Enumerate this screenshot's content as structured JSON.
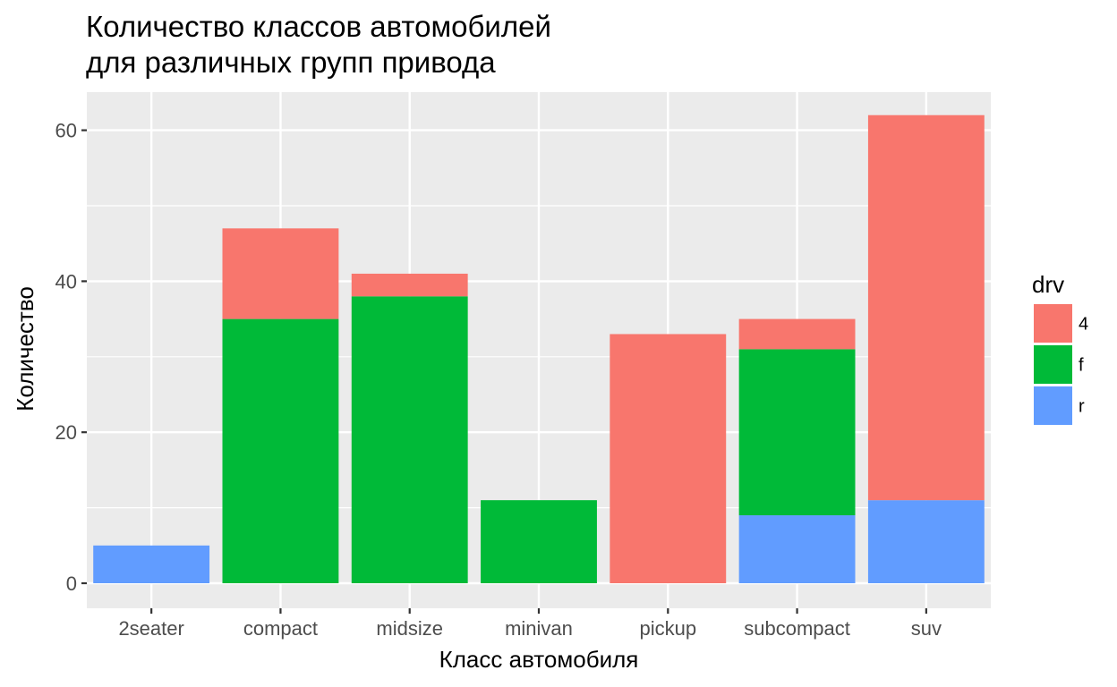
{
  "chart_data": {
    "type": "bar",
    "stacked": true,
    "title_lines": [
      "Количество классов автомобилей",
      "для различных групп привода"
    ],
    "xlabel": "Класс автомобиля",
    "ylabel": "Количество",
    "categories": [
      "2seater",
      "compact",
      "midsize",
      "minivan",
      "pickup",
      "subcompact",
      "suv"
    ],
    "ylim": [
      0,
      65
    ],
    "yticks": [
      0,
      20,
      40,
      60
    ],
    "grid": true,
    "legend": {
      "title": "drv",
      "placement": "right",
      "items": [
        {
          "label": "4",
          "color": "#F8766D"
        },
        {
          "label": "f",
          "color": "#00BA38"
        },
        {
          "label": "r",
          "color": "#619CFF"
        }
      ]
    },
    "series": [
      {
        "name": "r",
        "color": "#619CFF",
        "values": [
          5,
          0,
          0,
          0,
          0,
          9,
          11
        ]
      },
      {
        "name": "f",
        "color": "#00BA38",
        "values": [
          0,
          35,
          38,
          11,
          0,
          22,
          0
        ]
      },
      {
        "name": "4",
        "color": "#F8766D",
        "values": [
          0,
          12,
          3,
          0,
          33,
          4,
          51
        ]
      }
    ],
    "panel_background": "#EBEBEB",
    "grid_color": "#FFFFFF",
    "tick_color": "#333333"
  }
}
